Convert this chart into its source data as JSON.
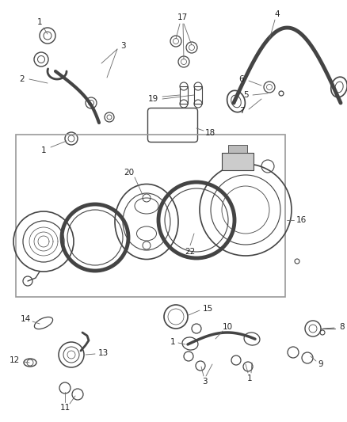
{
  "bg_color": "#ffffff",
  "fig_width": 4.38,
  "fig_height": 5.33,
  "dpi": 100,
  "darkgray": "#444444",
  "gray": "#777777",
  "box_color": "#888888"
}
